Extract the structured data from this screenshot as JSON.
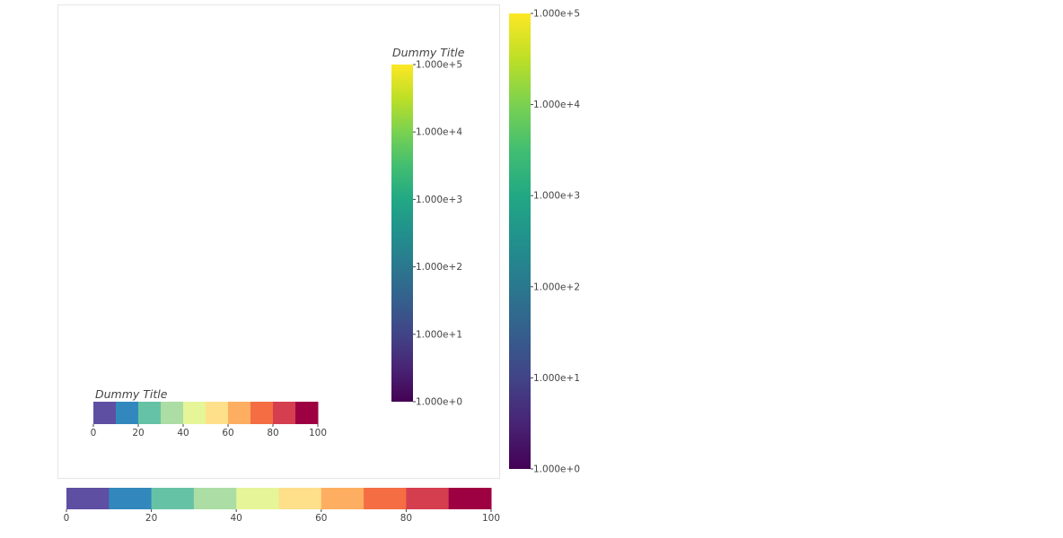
{
  "chart_data": [
    {
      "type": "colorbar",
      "orientation": "vertical",
      "location": "inside-plot-right",
      "title": "Dummy Title",
      "scale": "log",
      "palette": "Viridis",
      "range": [
        1,
        100000
      ],
      "ticks": [
        1,
        10,
        100,
        1000,
        10000,
        100000
      ],
      "tick_labels": [
        "1.000e+0",
        "1.000e+1",
        "1.000e+2",
        "1.000e+3",
        "1.000e+4",
        "1.000e+5"
      ]
    },
    {
      "type": "colorbar",
      "orientation": "horizontal",
      "location": "inside-plot-bottom-left",
      "title": "Dummy Title",
      "scale": "linear",
      "palette": "Spectral10",
      "range": [
        0,
        100
      ],
      "ticks": [
        0,
        20,
        40,
        60,
        80,
        100
      ],
      "tick_labels": [
        "0",
        "20",
        "40",
        "60",
        "80",
        "100"
      ]
    },
    {
      "type": "colorbar",
      "orientation": "vertical",
      "location": "outside-right",
      "title": "",
      "scale": "log",
      "palette": "Viridis",
      "range": [
        1,
        100000
      ],
      "ticks": [
        1,
        10,
        100,
        1000,
        10000,
        100000
      ],
      "tick_labels": [
        "1.000e+0",
        "1.000e+1",
        "1.000e+2",
        "1.000e+3",
        "1.000e+4",
        "1.000e+5"
      ]
    },
    {
      "type": "colorbar",
      "orientation": "horizontal",
      "location": "outside-below",
      "title": "",
      "scale": "linear",
      "palette": "Spectral10",
      "range": [
        0,
        100
      ],
      "ticks": [
        0,
        20,
        40,
        60,
        80,
        100
      ],
      "tick_labels": [
        "0",
        "20",
        "40",
        "60",
        "80",
        "100"
      ]
    }
  ],
  "palettes": {
    "Viridis": [
      "#440154",
      "#482475",
      "#414487",
      "#355f8d",
      "#2a788e",
      "#21908d",
      "#22a884",
      "#42be71",
      "#7ad151",
      "#bddf26",
      "#fde725"
    ],
    "Spectral10": [
      "#5e4fa2",
      "#3288bd",
      "#66c2a5",
      "#abdda4",
      "#e6f598",
      "#fee08b",
      "#fdae61",
      "#f46d43",
      "#d53e4f",
      "#9e0142"
    ]
  },
  "colors": {
    "plot_border": "#e5e5e5",
    "tick_text": "#444444"
  }
}
